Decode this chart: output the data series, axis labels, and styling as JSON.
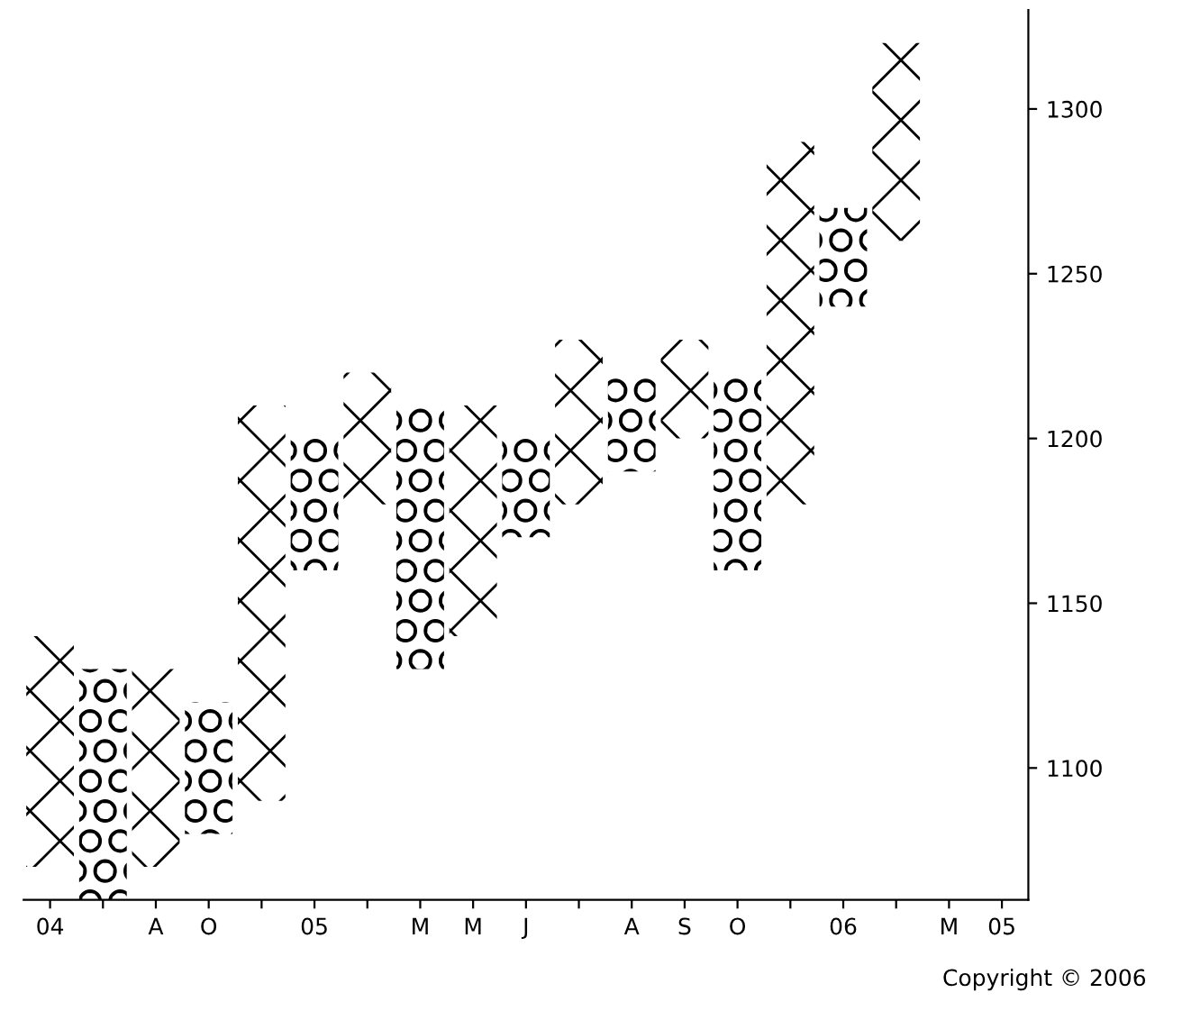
{
  "chart_data": {
    "type": "bar",
    "categories": [
      "04",
      null,
      "A",
      "O",
      null,
      "05",
      null,
      "M",
      "M",
      "J",
      null,
      "A",
      "S",
      "O",
      null,
      "06",
      null,
      "M",
      "05"
    ],
    "series": [
      {
        "color": "#000000",
        "marker": "cross",
        "base": [
          1070,
          null,
          1070,
          null,
          1090,
          null,
          1180,
          null,
          1140,
          null,
          1180,
          null,
          1200,
          null,
          1180,
          null,
          1260,
          null,
          null
        ],
        "values": [
          70,
          null,
          60,
          null,
          120,
          null,
          40,
          null,
          70,
          null,
          50,
          null,
          30,
          null,
          110,
          null,
          60,
          null,
          null
        ]
      },
      {
        "color": "#000000",
        "marker": "circle",
        "base": [
          null,
          1060,
          null,
          1080,
          null,
          1160,
          null,
          1130,
          null,
          1170,
          null,
          1190,
          null,
          1160,
          null,
          1240,
          null,
          null,
          null
        ],
        "values": [
          null,
          70,
          null,
          40,
          null,
          40,
          null,
          80,
          null,
          30,
          null,
          30,
          null,
          60,
          null,
          30,
          null,
          null,
          null
        ]
      }
    ],
    "ylim": [
      1060,
      1330
    ],
    "yticks": [
      1100,
      1150,
      1200,
      1250,
      1300
    ],
    "grid": false,
    "annotations": [
      "Copyright © 2006"
    ]
  }
}
